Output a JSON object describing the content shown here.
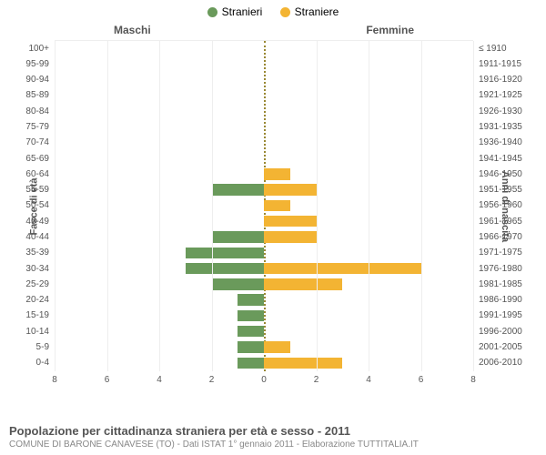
{
  "legend": {
    "male": {
      "label": "Stranieri",
      "color": "#6a9a5b"
    },
    "female": {
      "label": "Straniere",
      "color": "#f3b433"
    }
  },
  "panel_titles": {
    "left": "Maschi",
    "right": "Femmine"
  },
  "axis_labels": {
    "left": "Fasce di età",
    "right": "Anni di nascita"
  },
  "chart": {
    "type": "population-pyramid",
    "xmax": 8,
    "xtick_step": 2,
    "xticks_left": [
      8,
      6,
      4,
      2,
      0
    ],
    "xticks_right": [
      0,
      2,
      4,
      6,
      8
    ],
    "background_color": "#ffffff",
    "grid_color": "#eeeeee",
    "center_line_color": "#998833",
    "male_color": "#6a9a5b",
    "female_color": "#f3b433",
    "rows": [
      {
        "age": "100+",
        "birth": "≤ 1910",
        "m": 0,
        "f": 0
      },
      {
        "age": "95-99",
        "birth": "1911-1915",
        "m": 0,
        "f": 0
      },
      {
        "age": "90-94",
        "birth": "1916-1920",
        "m": 0,
        "f": 0
      },
      {
        "age": "85-89",
        "birth": "1921-1925",
        "m": 0,
        "f": 0
      },
      {
        "age": "80-84",
        "birth": "1926-1930",
        "m": 0,
        "f": 0
      },
      {
        "age": "75-79",
        "birth": "1931-1935",
        "m": 0,
        "f": 0
      },
      {
        "age": "70-74",
        "birth": "1936-1940",
        "m": 0,
        "f": 0
      },
      {
        "age": "65-69",
        "birth": "1941-1945",
        "m": 0,
        "f": 0
      },
      {
        "age": "60-64",
        "birth": "1946-1950",
        "m": 0,
        "f": 1
      },
      {
        "age": "55-59",
        "birth": "1951-1955",
        "m": 2,
        "f": 2
      },
      {
        "age": "50-54",
        "birth": "1956-1960",
        "m": 0,
        "f": 1
      },
      {
        "age": "45-49",
        "birth": "1961-1965",
        "m": 0,
        "f": 2
      },
      {
        "age": "40-44",
        "birth": "1966-1970",
        "m": 2,
        "f": 2
      },
      {
        "age": "35-39",
        "birth": "1971-1975",
        "m": 3,
        "f": 0
      },
      {
        "age": "30-34",
        "birth": "1976-1980",
        "m": 3,
        "f": 6
      },
      {
        "age": "25-29",
        "birth": "1981-1985",
        "m": 2,
        "f": 3
      },
      {
        "age": "20-24",
        "birth": "1986-1990",
        "m": 1,
        "f": 0
      },
      {
        "age": "15-19",
        "birth": "1991-1995",
        "m": 1,
        "f": 0
      },
      {
        "age": "10-14",
        "birth": "1996-2000",
        "m": 1,
        "f": 0
      },
      {
        "age": "5-9",
        "birth": "2001-2005",
        "m": 1,
        "f": 1
      },
      {
        "age": "0-4",
        "birth": "2006-2010",
        "m": 1,
        "f": 3
      }
    ]
  },
  "caption": {
    "title": "Popolazione per cittadinanza straniera per età e sesso - 2011",
    "subtitle": "COMUNE DI BARONE CANAVESE (TO) - Dati ISTAT 1° gennaio 2011 - Elaborazione TUTTITALIA.IT"
  }
}
